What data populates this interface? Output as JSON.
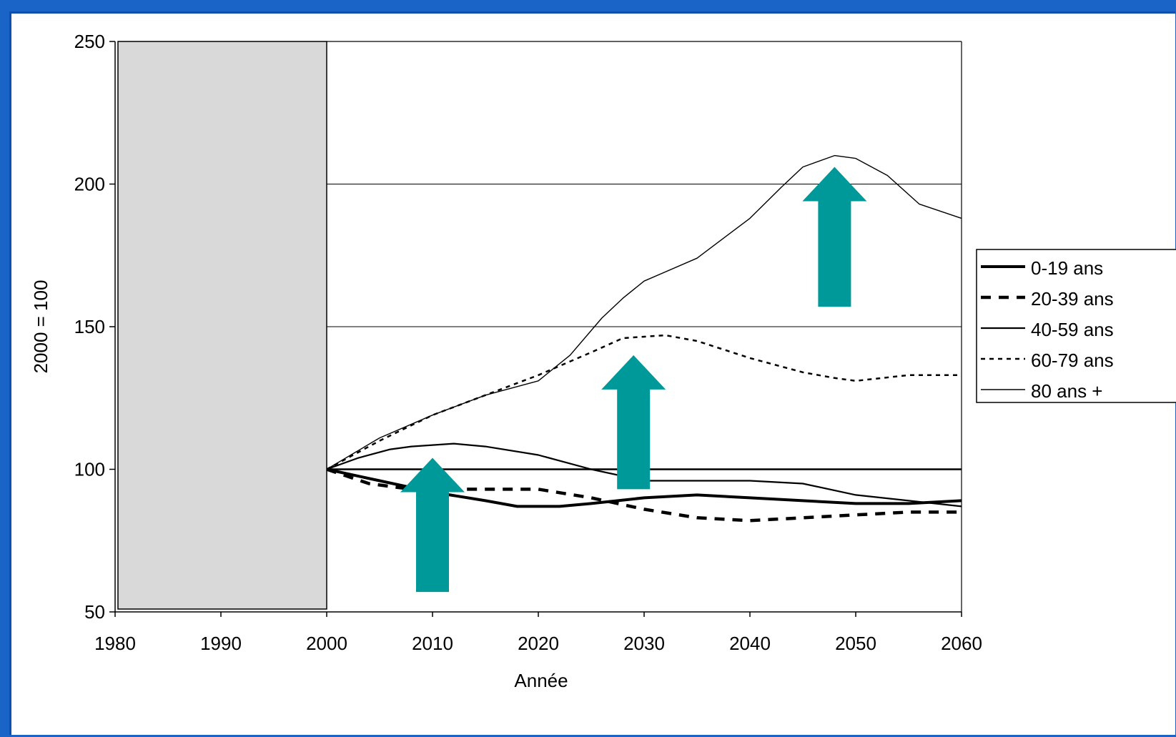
{
  "chart_data": {
    "type": "line",
    "ylabel": "2000 = 100",
    "xlabel": "Année",
    "xlim": [
      1980,
      2060
    ],
    "ylim": [
      50,
      250
    ],
    "xticks": [
      1980,
      1990,
      2000,
      2010,
      2020,
      2030,
      2040,
      2050,
      2060
    ],
    "yticks": [
      50,
      100,
      150,
      200,
      250
    ],
    "gridlines_y": [
      100,
      150,
      200
    ],
    "grid_region": "2000-2060",
    "shaded_range": [
      1980,
      2000
    ],
    "shade_color": "#d9d9d9",
    "arrow_color": "#009999",
    "legend_position": "right",
    "series": [
      {
        "name": "0-19 ans",
        "style": "thick-solid",
        "x": [
          2000,
          2005,
          2010,
          2015,
          2018,
          2022,
          2025,
          2030,
          2035,
          2040,
          2045,
          2050,
          2055,
          2060
        ],
        "y": [
          100,
          96,
          92,
          89,
          87,
          87,
          88,
          90,
          91,
          90,
          89,
          88,
          88,
          89
        ]
      },
      {
        "name": "20-39 ans",
        "style": "thick-dashed",
        "x": [
          2000,
          2004,
          2008,
          2012,
          2016,
          2020,
          2025,
          2030,
          2035,
          2040,
          2045,
          2050,
          2055,
          2060
        ],
        "y": [
          100,
          95,
          93,
          93,
          93,
          93,
          90,
          86,
          83,
          82,
          83,
          84,
          85,
          85
        ]
      },
      {
        "name": "40-59 ans",
        "style": "solid",
        "x": [
          2000,
          2003,
          2006,
          2008,
          2010,
          2012,
          2015,
          2020,
          2025,
          2030,
          2035,
          2040,
          2045,
          2050,
          2055,
          2060
        ],
        "y": [
          100,
          104,
          107,
          108,
          108.5,
          109,
          108,
          105,
          100,
          96,
          96,
          96,
          95,
          91,
          89,
          87
        ]
      },
      {
        "name": "60-79 ans",
        "style": "dotted",
        "x": [
          2000,
          2005,
          2010,
          2015,
          2020,
          2025,
          2028,
          2032,
          2035,
          2040,
          2045,
          2048,
          2050,
          2055,
          2060
        ],
        "y": [
          100,
          110,
          119,
          126,
          133,
          141,
          146,
          147,
          145,
          139,
          134,
          132,
          131,
          133,
          133
        ]
      },
      {
        "name": "80 ans +",
        "style": "thin-solid",
        "x": [
          2000,
          2005,
          2010,
          2015,
          2020,
          2023,
          2026,
          2028,
          2030,
          2035,
          2040,
          2043,
          2045,
          2048,
          2050,
          2053,
          2056,
          2060
        ],
        "y": [
          100,
          111,
          119,
          126,
          131,
          140,
          153,
          160,
          166,
          174,
          188,
          199,
          206,
          210,
          209,
          203,
          193,
          188
        ]
      }
    ],
    "arrows": [
      {
        "x": 2010,
        "y_from": 57,
        "y_to": 104
      },
      {
        "x": 2029,
        "y_from": 93,
        "y_to": 140
      },
      {
        "x": 2048,
        "y_from": 157,
        "y_to": 206
      }
    ]
  }
}
